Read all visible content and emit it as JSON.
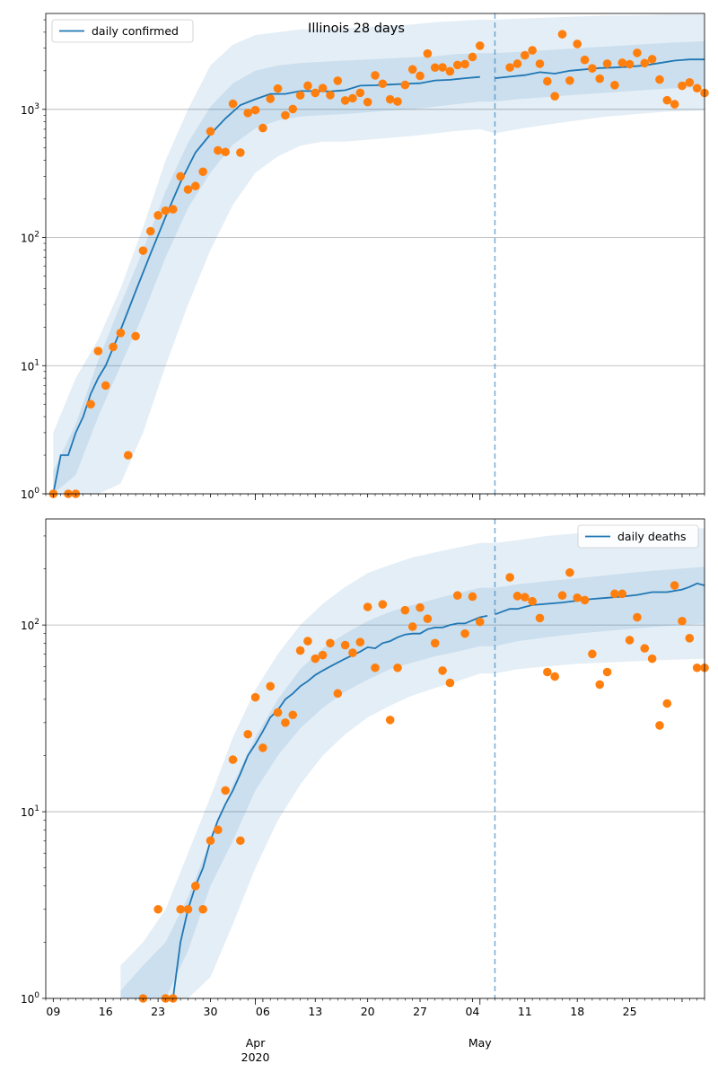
{
  "chart_data": [
    {
      "type": "line",
      "title": "Illinois 28 days",
      "yscale": "log",
      "ylim": [
        1,
        5600
      ],
      "grid": "y",
      "legend": {
        "label": "daily confirmed",
        "placement": "top-left"
      },
      "forecast_start": "2020-05-03",
      "colors": {
        "line": "#1f77b4",
        "band": "#1f77b4",
        "points": "#ff7f0e"
      },
      "observed": {
        "x": [
          "2020-03-05",
          "2020-03-07",
          "2020-03-08",
          "2020-03-10",
          "2020-03-11",
          "2020-03-12",
          "2020-03-13",
          "2020-03-14",
          "2020-03-15",
          "2020-03-16",
          "2020-03-17",
          "2020-03-18",
          "2020-03-19",
          "2020-03-20",
          "2020-03-21",
          "2020-03-22",
          "2020-03-23",
          "2020-03-24",
          "2020-03-25",
          "2020-03-26",
          "2020-03-27",
          "2020-03-28",
          "2020-03-29",
          "2020-03-30",
          "2020-03-31",
          "2020-04-01",
          "2020-04-02",
          "2020-04-03",
          "2020-04-04",
          "2020-04-05",
          "2020-04-06",
          "2020-04-07",
          "2020-04-08",
          "2020-04-09",
          "2020-04-10",
          "2020-04-11",
          "2020-04-12",
          "2020-04-13",
          "2020-04-14",
          "2020-04-15",
          "2020-04-16",
          "2020-04-17",
          "2020-04-18",
          "2020-04-19",
          "2020-04-20",
          "2020-04-21",
          "2020-04-22",
          "2020-04-23",
          "2020-04-24",
          "2020-04-25",
          "2020-04-26",
          "2020-04-27",
          "2020-04-28",
          "2020-04-29",
          "2020-04-30",
          "2020-05-01",
          "2020-05-05",
          "2020-05-06",
          "2020-05-07",
          "2020-05-08",
          "2020-05-09",
          "2020-05-10",
          "2020-05-11",
          "2020-05-12",
          "2020-05-13",
          "2020-05-14",
          "2020-05-15",
          "2020-05-16",
          "2020-05-17",
          "2020-05-18",
          "2020-05-19",
          "2020-05-20",
          "2020-05-21",
          "2020-05-22",
          "2020-05-23",
          "2020-05-24",
          "2020-05-25",
          "2020-05-26",
          "2020-05-27",
          "2020-05-28",
          "2020-05-29",
          "2020-05-30",
          "2020-05-31"
        ],
        "y": [
          1,
          1,
          1,
          5,
          13,
          7,
          14,
          18,
          2,
          17,
          79,
          112,
          149,
          162,
          166,
          300,
          237,
          252,
          326,
          673,
          478,
          465,
          1105,
          460,
          937,
          986,
          715,
          1209,
          1453,
          899,
          1006,
          1287,
          1529,
          1344,
          1465,
          1293,
          1672,
          1173,
          1222,
          1346,
          1140,
          1842,
          1585,
          1197,
          1151,
          1551,
          2049,
          1826,
          2724,
          2119,
          2126,
          1980,
          2219,
          2253,
          2563,
          3137,
          2122,
          2270,
          2641,
          2887,
          2268,
          1656,
          1266,
          3854,
          1677,
          3239,
          2432,
          2088,
          1734,
          2273,
          1545,
          2310,
          2250,
          2758,
          2294,
          2464,
          1708,
          1178,
          1097,
          1527,
          1622,
          1462,
          1343
        ]
      },
      "central": {
        "x": [
          "2020-03-05",
          "2020-03-06",
          "2020-03-07",
          "2020-03-08",
          "2020-03-09",
          "2020-03-10",
          "2020-03-11",
          "2020-03-12",
          "2020-03-14",
          "2020-03-16",
          "2020-03-18",
          "2020-03-20",
          "2020-03-22",
          "2020-03-24",
          "2020-03-26",
          "2020-03-28",
          "2020-03-30",
          "2020-04-01",
          "2020-04-03",
          "2020-04-05",
          "2020-04-07",
          "2020-04-09",
          "2020-04-11",
          "2020-04-13",
          "2020-04-15",
          "2020-04-17",
          "2020-04-19",
          "2020-04-21",
          "2020-04-23",
          "2020-04-25",
          "2020-04-27",
          "2020-04-29",
          "2020-05-01",
          "2020-05-03",
          "2020-05-05",
          "2020-05-07",
          "2020-05-09",
          "2020-05-11",
          "2020-05-13",
          "2020-05-15",
          "2020-05-17",
          "2020-05-19",
          "2020-05-21",
          "2020-05-23",
          "2020-05-25",
          "2020-05-27",
          "2020-05-29",
          "2020-05-31"
        ],
        "y": [
          1,
          2,
          2,
          3,
          4,
          6,
          8,
          10,
          19,
          38,
          75,
          145,
          270,
          460,
          640,
          850,
          1080,
          1200,
          1320,
          1320,
          1390,
          1390,
          1380,
          1410,
          1530,
          1540,
          1560,
          1580,
          1600,
          1680,
          1700,
          1750,
          1790,
          1750,
          1800,
          1850,
          1950,
          1900,
          2000,
          2050,
          2100,
          2120,
          2150,
          2200,
          2300,
          2400,
          2450,
          2450
        ]
      },
      "bands": {
        "x": [
          "2020-03-05",
          "2020-03-08",
          "2020-03-11",
          "2020-03-14",
          "2020-03-17",
          "2020-03-20",
          "2020-03-23",
          "2020-03-26",
          "2020-03-29",
          "2020-04-01",
          "2020-04-04",
          "2020-04-07",
          "2020-04-10",
          "2020-04-13",
          "2020-04-16",
          "2020-04-19",
          "2020-04-22",
          "2020-04-25",
          "2020-04-28",
          "2020-05-01",
          "2020-05-03",
          "2020-05-06",
          "2020-05-10",
          "2020-05-14",
          "2020-05-18",
          "2020-05-22",
          "2020-05-26",
          "2020-05-31"
        ],
        "outer_low": [
          1,
          1,
          1,
          1.2,
          3,
          10,
          30,
          80,
          180,
          320,
          430,
          520,
          560,
          560,
          580,
          600,
          620,
          650,
          680,
          700,
          650,
          700,
          760,
          820,
          880,
          920,
          960,
          980
        ],
        "outer_high": [
          3,
          8,
          16,
          40,
          120,
          400,
          1000,
          2200,
          3200,
          3800,
          4000,
          4200,
          4200,
          4300,
          4400,
          4500,
          4600,
          4800,
          4900,
          5000,
          5000,
          5100,
          5200,
          5300,
          5400,
          5400,
          5500,
          5500
        ],
        "inner_low": [
          1,
          1.4,
          4,
          10,
          25,
          70,
          170,
          320,
          530,
          710,
          820,
          880,
          900,
          920,
          950,
          980,
          1000,
          1050,
          1100,
          1150,
          1150,
          1200,
          1250,
          1300,
          1350,
          1400,
          1450,
          1500
        ],
        "inner_high": [
          1.5,
          3.5,
          11,
          30,
          80,
          230,
          550,
          1050,
          1600,
          2000,
          2200,
          2300,
          2350,
          2400,
          2450,
          2500,
          2550,
          2600,
          2700,
          2750,
          2750,
          2800,
          2900,
          3000,
          3100,
          3200,
          3300,
          3400
        ]
      }
    },
    {
      "type": "line",
      "yscale": "log",
      "ylim": [
        1,
        370
      ],
      "grid": "y",
      "legend": {
        "label": "daily deaths",
        "placement": "top-right"
      },
      "forecast_start": "2020-05-03",
      "colors": {
        "line": "#1f77b4",
        "band": "#1f77b4",
        "points": "#ff7f0e"
      },
      "observed": {
        "x": [
          "2020-03-17",
          "2020-03-19",
          "2020-03-20",
          "2020-03-21",
          "2020-03-22",
          "2020-03-23",
          "2020-03-24",
          "2020-03-25",
          "2020-03-26",
          "2020-03-27",
          "2020-03-28",
          "2020-03-29",
          "2020-03-30",
          "2020-03-31",
          "2020-04-01",
          "2020-04-02",
          "2020-04-03",
          "2020-04-04",
          "2020-04-05",
          "2020-04-06",
          "2020-04-07",
          "2020-04-08",
          "2020-04-09",
          "2020-04-10",
          "2020-04-11",
          "2020-04-12",
          "2020-04-13",
          "2020-04-14",
          "2020-04-15",
          "2020-04-16",
          "2020-04-17",
          "2020-04-18",
          "2020-04-19",
          "2020-04-20",
          "2020-04-21",
          "2020-04-22",
          "2020-04-23",
          "2020-04-24",
          "2020-04-25",
          "2020-04-26",
          "2020-04-27",
          "2020-04-28",
          "2020-04-29",
          "2020-04-30",
          "2020-05-01",
          "2020-05-05",
          "2020-05-06",
          "2020-05-07",
          "2020-05-08",
          "2020-05-09",
          "2020-05-10",
          "2020-05-11",
          "2020-05-12",
          "2020-05-13",
          "2020-05-14",
          "2020-05-15",
          "2020-05-16",
          "2020-05-17",
          "2020-05-18",
          "2020-05-19",
          "2020-05-20",
          "2020-05-21",
          "2020-05-22",
          "2020-05-23",
          "2020-05-24",
          "2020-05-25",
          "2020-05-26",
          "2020-05-27",
          "2020-05-28",
          "2020-05-29",
          "2020-05-30",
          "2020-05-31"
        ],
        "y": [
          1,
          3,
          1,
          1,
          3,
          3,
          4,
          3,
          7,
          8,
          13,
          19,
          7,
          26,
          41,
          22,
          47,
          34,
          30,
          33,
          73,
          82,
          66,
          69,
          80,
          43,
          78,
          71,
          81,
          125,
          59,
          129,
          31,
          59,
          120,
          98,
          124,
          108,
          80,
          57,
          49,
          144,
          90,
          142,
          104,
          180,
          143,
          141,
          134,
          109,
          56,
          53,
          144,
          191,
          140,
          136,
          70,
          48,
          56,
          147,
          147,
          83,
          110,
          75,
          66,
          29,
          38,
          163,
          105,
          85,
          59,
          59
        ]
      },
      "central": {
        "x": [
          "2020-03-21",
          "2020-03-22",
          "2020-03-23",
          "2020-03-24",
          "2020-03-25",
          "2020-03-26",
          "2020-03-27",
          "2020-03-28",
          "2020-03-29",
          "2020-03-30",
          "2020-03-31",
          "2020-04-01",
          "2020-04-02",
          "2020-04-03",
          "2020-04-04",
          "2020-04-05",
          "2020-04-06",
          "2020-04-07",
          "2020-04-08",
          "2020-04-09",
          "2020-04-10",
          "2020-04-11",
          "2020-04-12",
          "2020-04-13",
          "2020-04-14",
          "2020-04-15",
          "2020-04-16",
          "2020-04-17",
          "2020-04-18",
          "2020-04-19",
          "2020-04-20",
          "2020-04-21",
          "2020-04-22",
          "2020-04-23",
          "2020-04-24",
          "2020-04-25",
          "2020-04-26",
          "2020-04-27",
          "2020-04-28",
          "2020-04-29",
          "2020-04-30",
          "2020-05-01",
          "2020-05-02",
          "2020-05-03",
          "2020-05-04",
          "2020-05-05",
          "2020-05-06",
          "2020-05-07",
          "2020-05-08",
          "2020-05-10",
          "2020-05-12",
          "2020-05-14",
          "2020-05-16",
          "2020-05-18",
          "2020-05-20",
          "2020-05-22",
          "2020-05-24",
          "2020-05-26",
          "2020-05-28",
          "2020-05-29",
          "2020-05-30",
          "2020-05-31"
        ],
        "y": [
          1,
          2,
          3,
          4,
          5,
          7,
          9,
          11,
          13,
          16,
          20,
          23,
          27,
          32,
          35,
          40,
          43,
          47,
          50,
          54,
          57,
          60,
          63,
          66,
          69,
          72,
          76,
          75,
          80,
          82,
          86,
          89,
          90,
          90,
          95,
          97,
          97,
          100,
          102,
          102,
          106,
          110,
          112,
          114,
          118,
          122,
          122,
          125,
          128,
          130,
          132,
          135,
          138,
          140,
          142,
          145,
          150,
          150,
          155,
          160,
          167,
          163
        ]
      },
      "bands": {
        "x": [
          "2020-03-14",
          "2020-03-17",
          "2020-03-20",
          "2020-03-23",
          "2020-03-26",
          "2020-03-29",
          "2020-04-01",
          "2020-04-04",
          "2020-04-07",
          "2020-04-10",
          "2020-04-13",
          "2020-04-16",
          "2020-04-19",
          "2020-04-22",
          "2020-04-25",
          "2020-04-28",
          "2020-05-01",
          "2020-05-03",
          "2020-05-06",
          "2020-05-10",
          "2020-05-14",
          "2020-05-18",
          "2020-05-22",
          "2020-05-26",
          "2020-05-31"
        ],
        "outer_low": [
          1,
          1,
          1,
          1,
          1.3,
          2.5,
          5,
          9,
          14,
          20,
          26,
          32,
          37,
          42,
          46,
          50,
          55,
          55,
          58,
          60,
          62,
          63,
          64,
          65,
          66
        ],
        "outer_high": [
          1.5,
          2,
          3,
          6,
          12,
          25,
          45,
          70,
          100,
          130,
          160,
          190,
          210,
          230,
          245,
          260,
          275,
          275,
          285,
          300,
          310,
          315,
          320,
          325,
          330
        ],
        "inner_low": [
          1,
          1,
          1,
          1.8,
          4,
          7,
          13,
          20,
          28,
          36,
          44,
          51,
          58,
          63,
          68,
          72,
          77,
          77,
          82,
          86,
          90,
          93,
          96,
          99,
          102
        ],
        "inner_high": [
          1.1,
          1.5,
          2,
          3.5,
          7,
          14,
          25,
          40,
          58,
          75,
          90,
          105,
          118,
          128,
          138,
          148,
          158,
          158,
          165,
          172,
          178,
          185,
          192,
          198,
          205
        ]
      }
    }
  ],
  "x_axis": {
    "ticks": [
      "09",
      "16",
      "23",
      "30",
      "06",
      "13",
      "20",
      "27",
      "04",
      "11",
      "18",
      "25"
    ],
    "month_labels": [
      "Apr",
      "May"
    ],
    "year_label": "2020"
  },
  "y_axis": {
    "tick_labels": [
      "10^0",
      "10^1",
      "10^2",
      "10^3"
    ]
  }
}
